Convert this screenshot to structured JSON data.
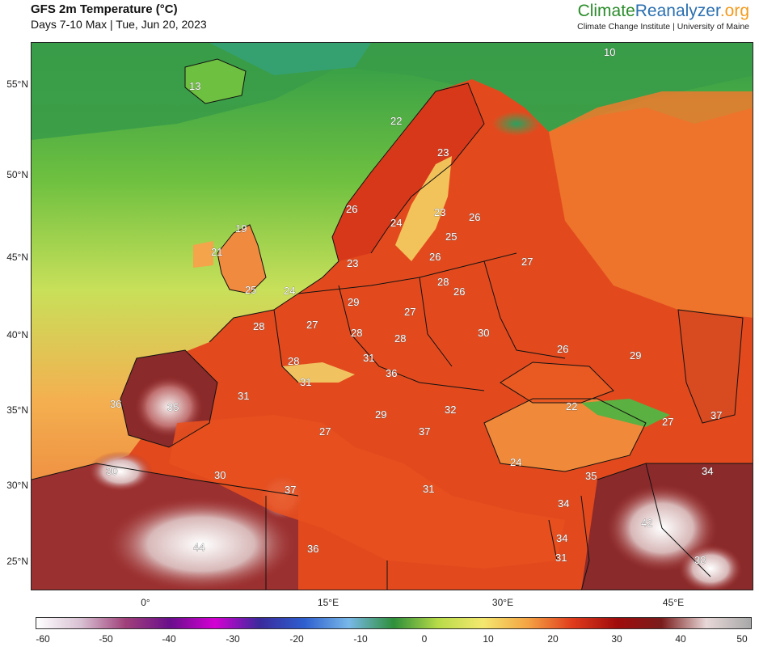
{
  "header": {
    "title": "GFS 2m Temperature (°C)",
    "subtitle": "Days 7-10 Max | Tue, Jun 20, 2023"
  },
  "brand": {
    "name_part1": "Climate",
    "name_part2": "Reanalyzer",
    "name_part3": ".org",
    "subtitle": "Climate Change Institute | University of Maine",
    "colors": {
      "part1": "#2a8c2a",
      "part2": "#2a6fb0",
      "part3": "#f39a1c"
    }
  },
  "map": {
    "latitude_labels": [
      "55°N",
      "50°N",
      "45°N",
      "40°N",
      "35°N",
      "30°N",
      "25°N"
    ],
    "longitude_labels": [
      "0°",
      "15°E",
      "30°E",
      "45°E"
    ],
    "temperature_labels": [
      "10",
      "13",
      "22",
      "23",
      "26",
      "24",
      "23",
      "26",
      "19",
      "21",
      "25",
      "23",
      "26",
      "27",
      "28",
      "26",
      "25",
      "24",
      "29",
      "27",
      "28",
      "27",
      "28",
      "28",
      "30",
      "28",
      "31",
      "26",
      "29",
      "31",
      "36",
      "36",
      "35",
      "31",
      "22",
      "32",
      "29",
      "27",
      "37",
      "27",
      "37",
      "24",
      "30",
      "30",
      "35",
      "34",
      "37",
      "31",
      "34",
      "42",
      "44",
      "34",
      "36",
      "31",
      "38"
    ]
  },
  "colorbar": {
    "ticks": [
      "-60",
      "-50",
      "-40",
      "-30",
      "-20",
      "-10",
      "0",
      "10",
      "20",
      "30",
      "40",
      "50"
    ],
    "colors": [
      "#ffffff",
      "#d8c0d2",
      "#a0407a",
      "#6a0e8c",
      "#d400d4",
      "#3a2a9c",
      "#2e5fcf",
      "#78b8e8",
      "#2e8f3a",
      "#b8dc48",
      "#f4e870",
      "#f4a444",
      "#e03c1c",
      "#a00c0c",
      "#7a1c1c",
      "#e8d8d8",
      "#a8a8a8"
    ]
  }
}
